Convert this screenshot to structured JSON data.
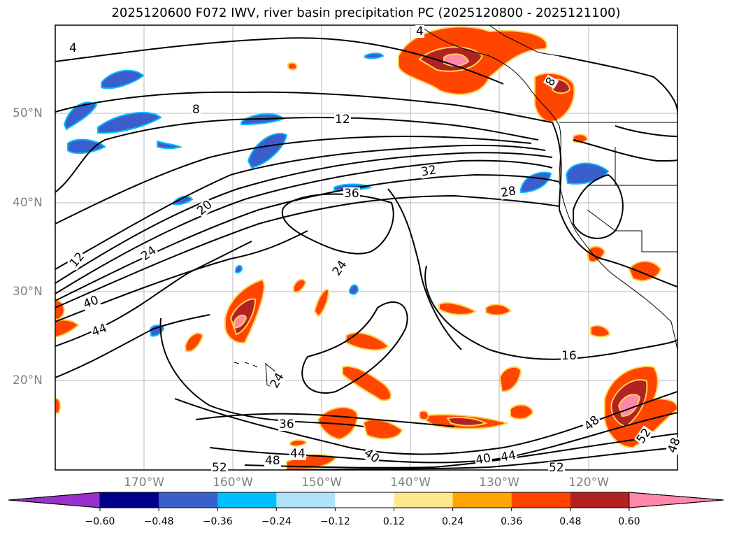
{
  "title": "2025120600 F072 IWV, river basin precipitation PC (2025120800 - 2025121100)",
  "lat_labels": [
    "50°N",
    "40°N",
    "30°N",
    "20°N"
  ],
  "lon_labels": [
    "170°W",
    "160°W",
    "150°W",
    "140°W",
    "130°W",
    "120°W"
  ],
  "contour_labels": [
    "4",
    "8",
    "12",
    "20",
    "24",
    "28",
    "32",
    "36",
    "40",
    "44",
    "24",
    "16",
    "24",
    "36",
    "40",
    "44",
    "48",
    "52",
    "40",
    "44",
    "48",
    "52",
    "52",
    "48",
    "12",
    "8",
    "4"
  ],
  "colorbar": {
    "ticks": [
      "−0.60",
      "−0.48",
      "−0.36",
      "−0.24",
      "−0.12",
      "0.12",
      "0.24",
      "0.36",
      "0.48",
      "0.60"
    ],
    "colors": [
      "#9932cc",
      "#00008b",
      "#3a5fcd",
      "#00bfff",
      "#afe1fa",
      "#ffffff",
      "#ffe88c",
      "#ffa500",
      "#ff4500",
      "#b22222",
      "#ff88aa"
    ]
  },
  "palette": {
    "blue_anomaly": "#3a5fcd",
    "cyan_edge": "#00bfff",
    "orange": "#ff4500",
    "dark_red": "#b22222",
    "pink": "#ff88aa",
    "yellow_edge": "#ffd050"
  }
}
